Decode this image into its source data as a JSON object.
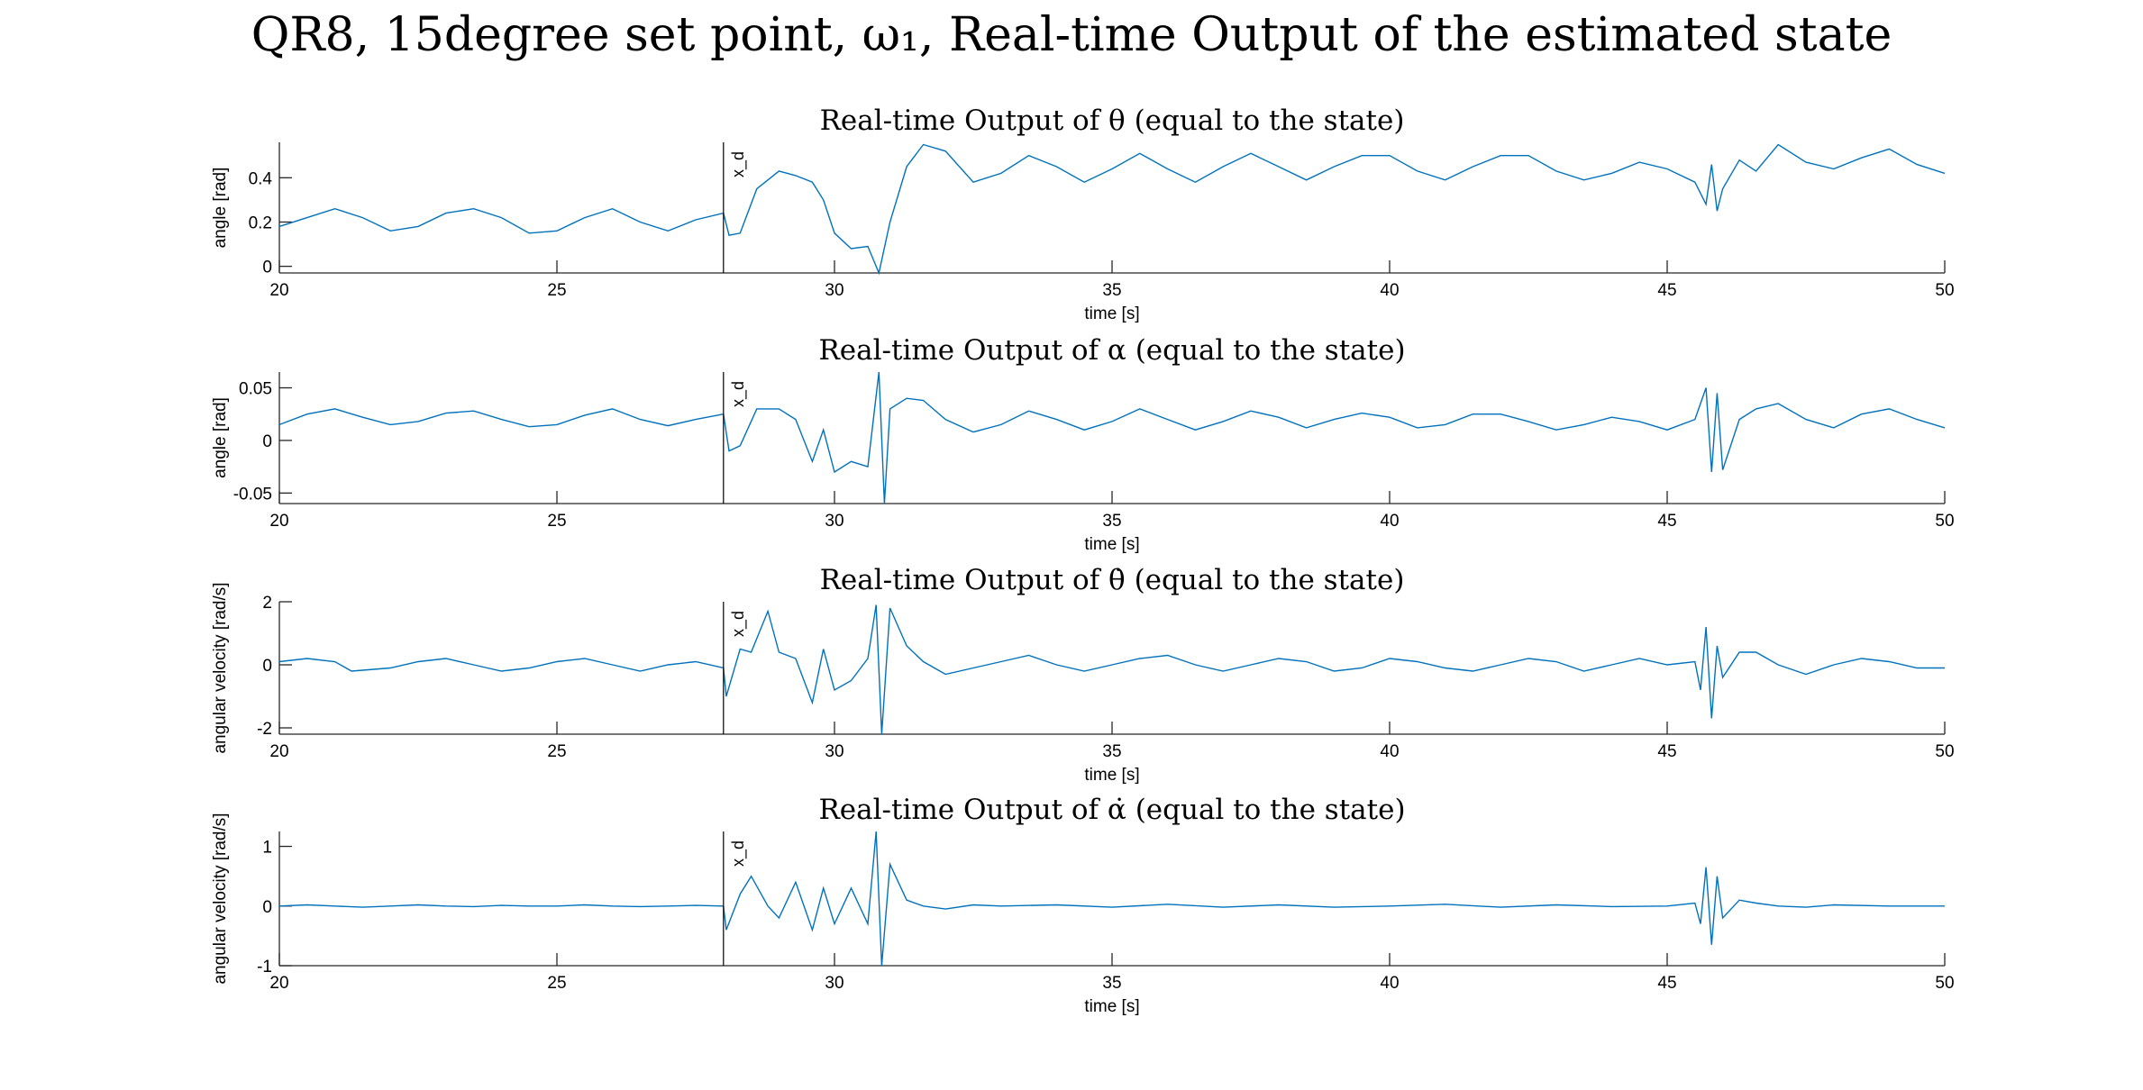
{
  "figure": {
    "title": "QR8, 15degree set point, ω₁, Real-time Output of the estimated state"
  },
  "colors": {
    "series": "#0072BD",
    "axis": "#262626",
    "marker": "#000000"
  },
  "chart_data": [
    {
      "type": "line",
      "title": "Real-time Output of θ (equal to the state)",
      "xlabel": "time [s]",
      "ylabel": "angle [rad]",
      "xlim": [
        20,
        50
      ],
      "ylim": [
        -0.03,
        0.56
      ],
      "xticks": [
        20,
        25,
        30,
        35,
        40,
        45,
        50
      ],
      "yticks": [
        0,
        0.2,
        0.4
      ],
      "ytick_labels": [
        "0",
        "0.2",
        "0.4"
      ],
      "grid": false,
      "marker": {
        "x": 28,
        "label": "x_d"
      },
      "series": [
        {
          "x": [
            20,
            20.5,
            21,
            21.5,
            22,
            22.5,
            23,
            23.5,
            24,
            24.5,
            25,
            25.5,
            26,
            26.5,
            27,
            27.5,
            28,
            28.1,
            28.3,
            28.6,
            29,
            29.3,
            29.6,
            29.8,
            30,
            30.3,
            30.6,
            30.8,
            31,
            31.3,
            31.6,
            32,
            32.5,
            33,
            33.5,
            34,
            34.5,
            35,
            35.5,
            36,
            36.5,
            37,
            37.5,
            38,
            38.5,
            39,
            39.5,
            40,
            40.5,
            41,
            41.5,
            42,
            42.5,
            43,
            43.5,
            44,
            44.5,
            45,
            45.5,
            45.7,
            45.8,
            45.9,
            46,
            46.3,
            46.6,
            47,
            47.5,
            48,
            48.5,
            49,
            49.5,
            50
          ],
          "y": [
            0.18,
            0.22,
            0.26,
            0.22,
            0.16,
            0.18,
            0.24,
            0.26,
            0.22,
            0.15,
            0.16,
            0.22,
            0.26,
            0.2,
            0.16,
            0.21,
            0.24,
            0.14,
            0.15,
            0.35,
            0.43,
            0.41,
            0.38,
            0.3,
            0.15,
            0.08,
            0.09,
            -0.03,
            0.2,
            0.45,
            0.55,
            0.52,
            0.38,
            0.42,
            0.5,
            0.45,
            0.38,
            0.44,
            0.51,
            0.44,
            0.38,
            0.45,
            0.51,
            0.45,
            0.39,
            0.45,
            0.5,
            0.5,
            0.43,
            0.39,
            0.45,
            0.5,
            0.5,
            0.43,
            0.39,
            0.42,
            0.47,
            0.44,
            0.38,
            0.28,
            0.46,
            0.25,
            0.35,
            0.48,
            0.43,
            0.55,
            0.47,
            0.44,
            0.49,
            0.53,
            0.46,
            0.42
          ]
        }
      ]
    },
    {
      "type": "line",
      "title": "Real-time Output of α (equal to the state)",
      "xlabel": "time [s]",
      "ylabel": "angle [rad]",
      "xlim": [
        20,
        50
      ],
      "ylim": [
        -0.06,
        0.065
      ],
      "xticks": [
        20,
        25,
        30,
        35,
        40,
        45,
        50
      ],
      "yticks": [
        -0.05,
        0,
        0.05
      ],
      "ytick_labels": [
        "-0.05",
        "0",
        "0.05"
      ],
      "grid": false,
      "marker": {
        "x": 28,
        "label": "x_d"
      },
      "series": [
        {
          "x": [
            20,
            20.5,
            21,
            21.5,
            22,
            22.5,
            23,
            23.5,
            24,
            24.5,
            25,
            25.5,
            26,
            26.5,
            27,
            27.5,
            28,
            28.1,
            28.3,
            28.6,
            29,
            29.3,
            29.6,
            29.8,
            30,
            30.3,
            30.6,
            30.8,
            30.9,
            31,
            31.3,
            31.6,
            32,
            32.5,
            33,
            33.5,
            34,
            34.5,
            35,
            35.5,
            36,
            36.5,
            37,
            37.5,
            38,
            38.5,
            39,
            39.5,
            40,
            40.5,
            41,
            41.5,
            42,
            42.5,
            43,
            43.5,
            44,
            44.5,
            45,
            45.5,
            45.7,
            45.8,
            45.9,
            46,
            46.3,
            46.6,
            47,
            47.5,
            48,
            48.5,
            49,
            49.5,
            50
          ],
          "y": [
            0.015,
            0.025,
            0.03,
            0.022,
            0.015,
            0.018,
            0.026,
            0.028,
            0.02,
            0.013,
            0.015,
            0.024,
            0.03,
            0.02,
            0.014,
            0.02,
            0.025,
            -0.01,
            -0.005,
            0.03,
            0.03,
            0.02,
            -0.02,
            0.01,
            -0.03,
            -0.02,
            -0.025,
            0.065,
            -0.06,
            0.03,
            0.04,
            0.038,
            0.02,
            0.008,
            0.015,
            0.028,
            0.02,
            0.01,
            0.018,
            0.03,
            0.02,
            0.01,
            0.018,
            0.028,
            0.022,
            0.012,
            0.02,
            0.026,
            0.022,
            0.012,
            0.015,
            0.025,
            0.025,
            0.018,
            0.01,
            0.015,
            0.022,
            0.018,
            0.01,
            0.02,
            0.05,
            -0.03,
            0.045,
            -0.028,
            0.02,
            0.03,
            0.035,
            0.02,
            0.012,
            0.025,
            0.03,
            0.02,
            0.012
          ]
        }
      ]
    },
    {
      "type": "line",
      "title": "Real-time Output of θ̇ (equal to the state)",
      "xlabel": "time [s]",
      "ylabel": "angular velocity [rad/s]",
      "xlim": [
        20,
        50
      ],
      "ylim": [
        -2.2,
        2
      ],
      "xticks": [
        20,
        25,
        30,
        35,
        40,
        45,
        50
      ],
      "yticks": [
        -2,
        0,
        2
      ],
      "ytick_labels": [
        "-2",
        "0",
        "2"
      ],
      "grid": false,
      "marker": {
        "x": 28,
        "label": "x_d"
      },
      "series": [
        {
          "x": [
            20,
            20.5,
            21,
            21.3,
            22,
            22.5,
            23,
            23.5,
            24,
            24.5,
            25,
            25.5,
            26,
            26.5,
            27,
            27.5,
            28,
            28.05,
            28.3,
            28.5,
            28.8,
            29,
            29.3,
            29.6,
            29.8,
            30,
            30.3,
            30.6,
            30.75,
            30.85,
            31,
            31.3,
            31.6,
            32,
            32.5,
            33,
            33.5,
            34,
            34.5,
            35,
            35.5,
            36,
            36.5,
            37,
            37.5,
            38,
            38.5,
            39,
            39.5,
            40,
            40.5,
            41,
            41.5,
            42,
            42.5,
            43,
            43.5,
            44,
            44.5,
            45,
            45.5,
            45.6,
            45.7,
            45.8,
            45.9,
            46,
            46.3,
            46.6,
            47,
            47.5,
            48,
            48.5,
            49,
            49.5,
            50
          ],
          "y": [
            0.1,
            0.2,
            0.1,
            -0.2,
            -0.1,
            0.1,
            0.2,
            0.0,
            -0.2,
            -0.1,
            0.1,
            0.2,
            0.0,
            -0.2,
            0.0,
            0.1,
            -0.1,
            -1.0,
            0.5,
            0.4,
            1.7,
            0.4,
            0.2,
            -1.2,
            0.5,
            -0.8,
            -0.5,
            0.2,
            1.9,
            -2.2,
            1.8,
            0.6,
            0.1,
            -0.3,
            -0.1,
            0.1,
            0.3,
            0.0,
            -0.2,
            0.0,
            0.2,
            0.3,
            0.0,
            -0.2,
            0.0,
            0.2,
            0.1,
            -0.2,
            -0.1,
            0.2,
            0.1,
            -0.1,
            -0.2,
            0.0,
            0.2,
            0.1,
            -0.2,
            0.0,
            0.2,
            0.0,
            0.1,
            -0.8,
            1.2,
            -1.7,
            0.6,
            -0.4,
            0.4,
            0.4,
            0.0,
            -0.3,
            0.0,
            0.2,
            0.1,
            -0.1,
            -0.1
          ]
        }
      ]
    },
    {
      "type": "line",
      "title": "Real-time Output of α̇ (equal to the state)",
      "xlabel": "time [s]",
      "ylabel": "angular velocity [rad/s]",
      "xlim": [
        20,
        50
      ],
      "ylim": [
        -1,
        1.25
      ],
      "xticks": [
        20,
        25,
        30,
        35,
        40,
        45,
        50
      ],
      "yticks": [
        -1,
        0,
        1
      ],
      "ytick_labels": [
        "-1",
        "0",
        "1"
      ],
      "grid": false,
      "marker": {
        "x": 28,
        "label": "x_d"
      },
      "series": [
        {
          "x": [
            20,
            20.5,
            21,
            21.5,
            22,
            22.5,
            23,
            23.5,
            24,
            24.5,
            25,
            25.5,
            26,
            26.5,
            27,
            27.5,
            28,
            28.05,
            28.3,
            28.5,
            28.8,
            29,
            29.3,
            29.6,
            29.8,
            30,
            30.3,
            30.6,
            30.75,
            30.85,
            31,
            31.3,
            31.6,
            32,
            32.5,
            33,
            34,
            35,
            36,
            37,
            38,
            39,
            40,
            41,
            42,
            43,
            44,
            45,
            45.5,
            45.6,
            45.7,
            45.8,
            45.9,
            46,
            46.3,
            46.6,
            47,
            47.5,
            48,
            49,
            50
          ],
          "y": [
            0.0,
            0.02,
            0.0,
            -0.02,
            0.0,
            0.02,
            0.0,
            -0.01,
            0.01,
            0.0,
            0.0,
            0.02,
            0.0,
            -0.01,
            0.0,
            0.01,
            0.0,
            -0.4,
            0.2,
            0.5,
            0.0,
            -0.2,
            0.4,
            -0.4,
            0.3,
            -0.3,
            0.3,
            -0.3,
            1.25,
            -1.0,
            0.7,
            0.1,
            0.0,
            -0.05,
            0.02,
            0.0,
            0.02,
            -0.02,
            0.03,
            -0.02,
            0.02,
            -0.02,
            0.0,
            0.03,
            -0.02,
            0.02,
            -0.01,
            0.0,
            0.05,
            -0.3,
            0.65,
            -0.65,
            0.5,
            -0.2,
            0.1,
            0.05,
            0.0,
            -0.02,
            0.02,
            0.0,
            0.0
          ]
        }
      ]
    }
  ]
}
